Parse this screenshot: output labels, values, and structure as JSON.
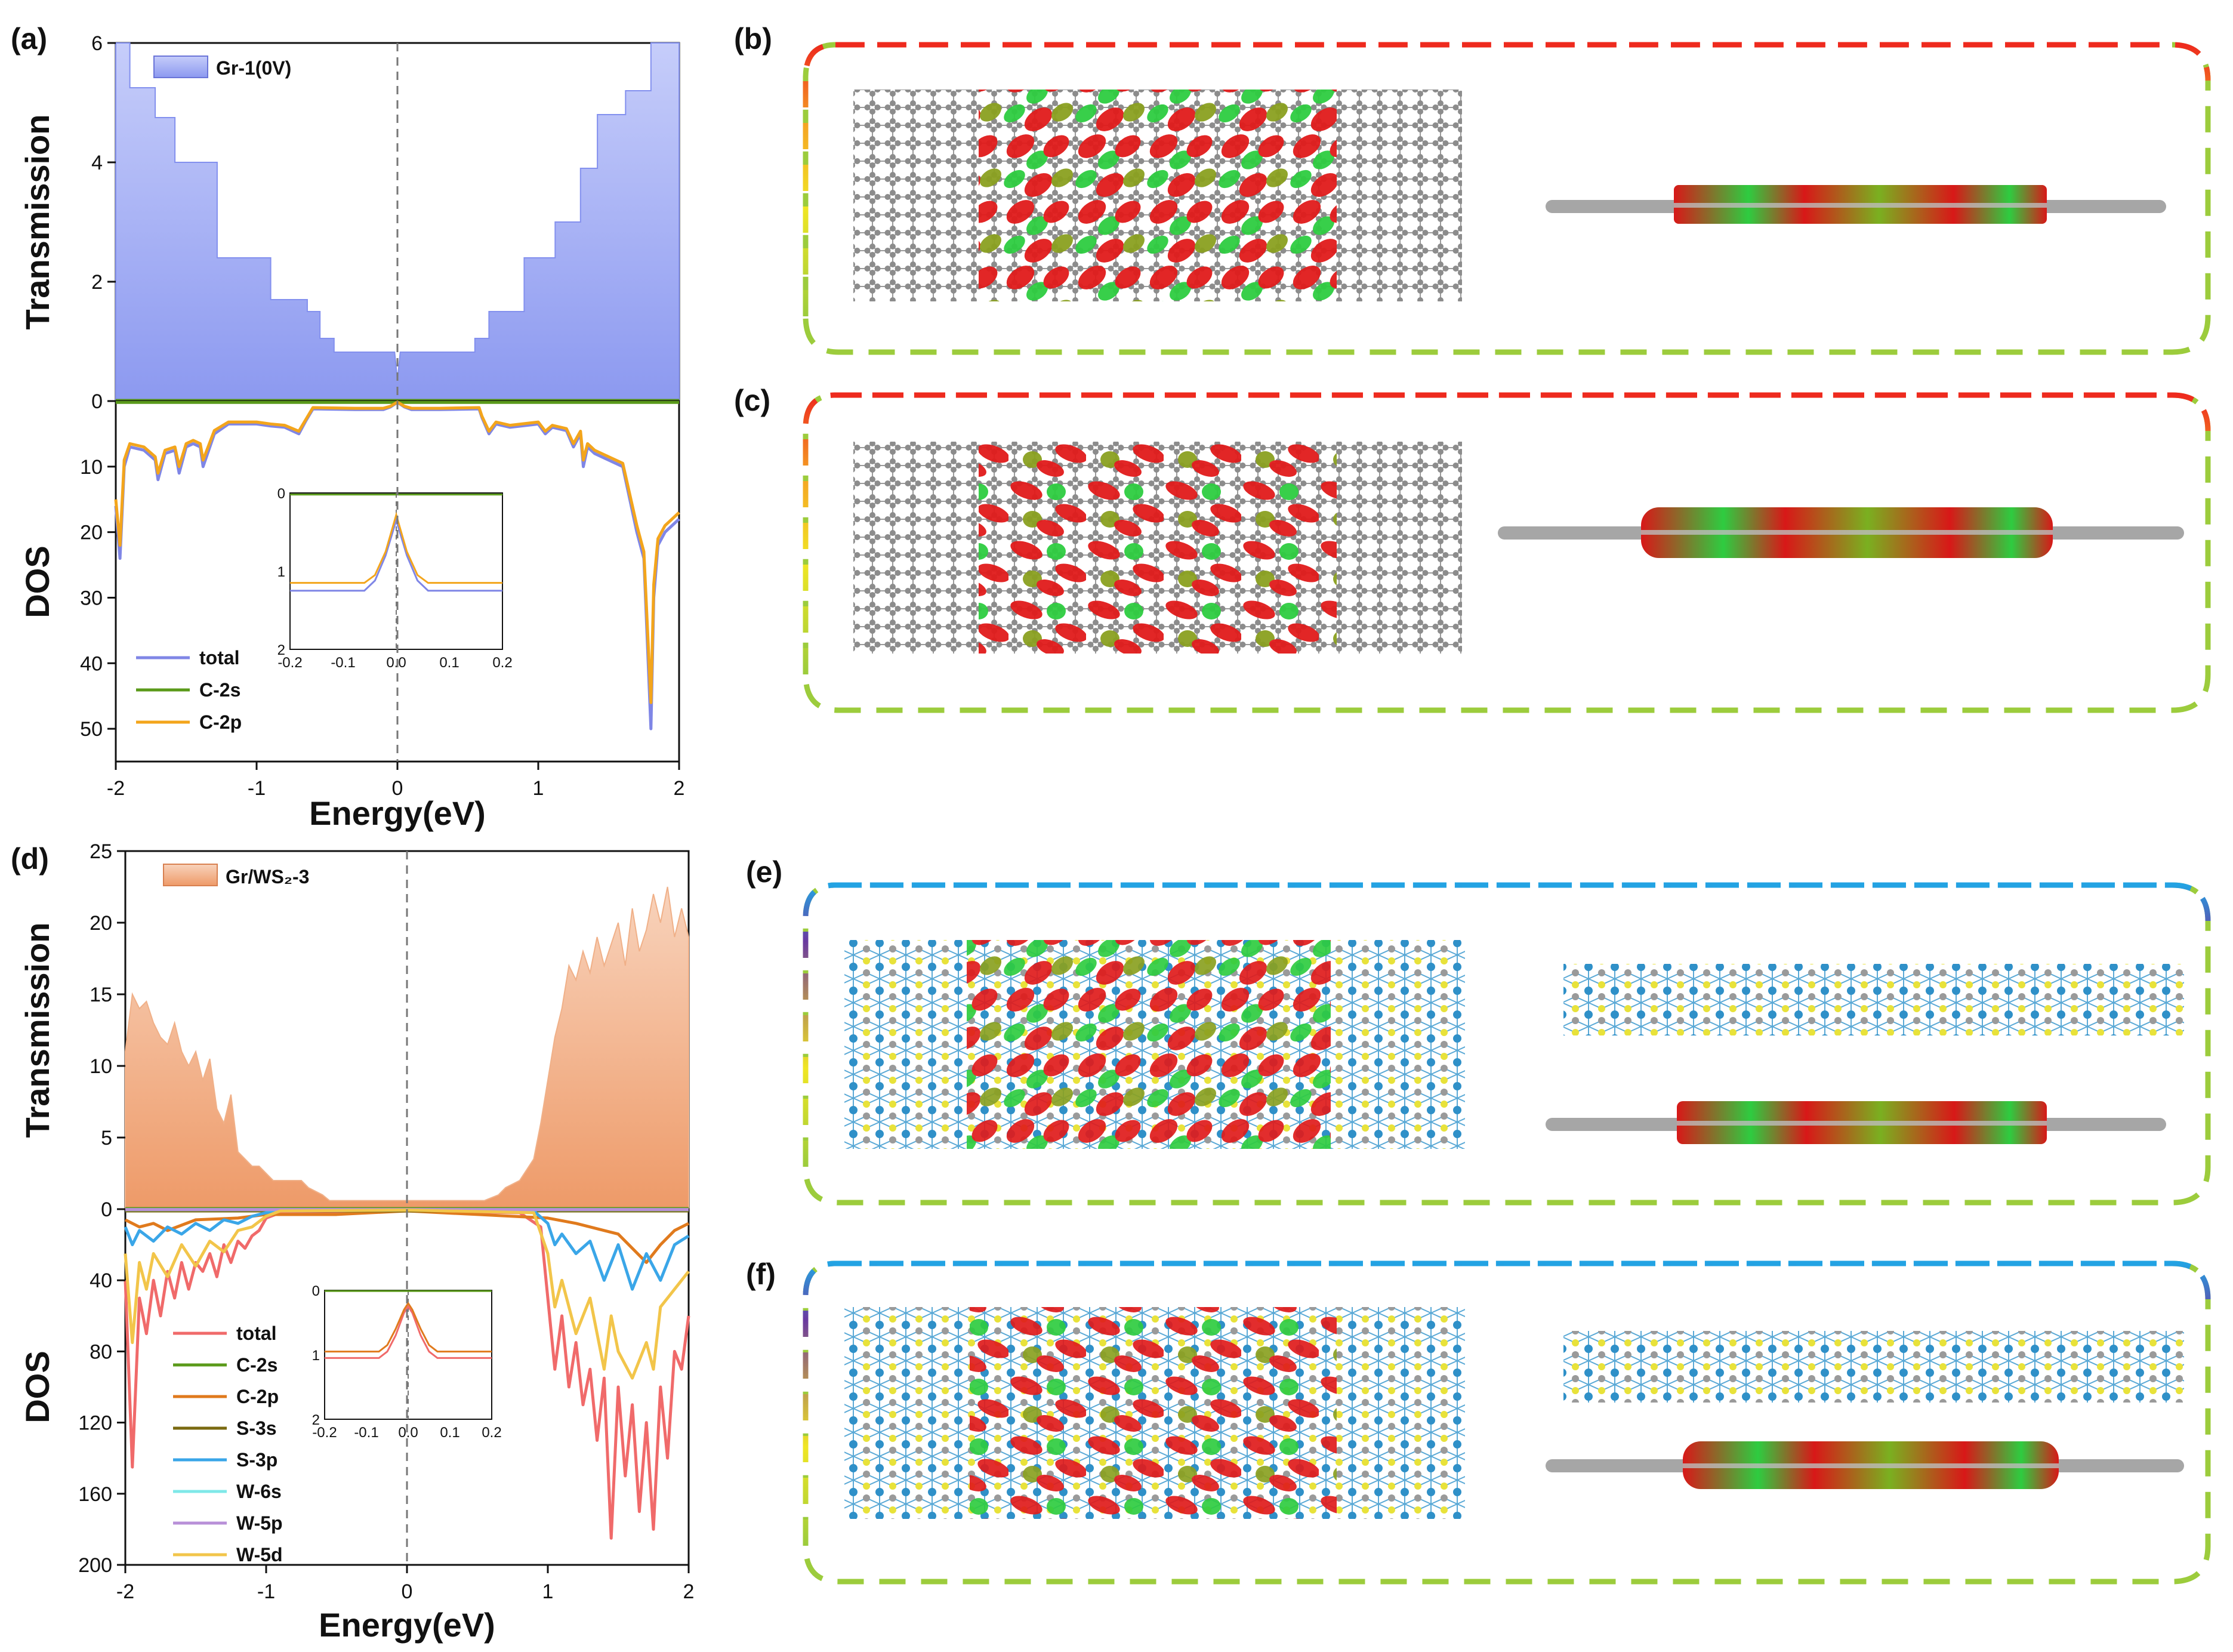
{
  "figure": {
    "panel_labels": [
      "(a)",
      "(b)",
      "(c)",
      "(d)",
      "(e)",
      "(f)"
    ]
  },
  "colors": {
    "gr_fill": "#9aa6f3",
    "ws2_fill": "#f1a67a",
    "total_a": "#7f86e6",
    "c2s": "#5a9a1a",
    "c2p_a": "#f3a51c",
    "total_d": "#f06a6a",
    "c2p_d": "#e07a1d",
    "s3s": "#7a6a10",
    "s3p": "#3aa6e8",
    "w6s": "#7fe8e8",
    "w5p": "#b890d8",
    "w5d": "#f2c54a",
    "frame_top_bc": "#ee2a1e",
    "frame_top_ef": "#23a3e3",
    "frame_bottom": "#9ccc3c",
    "carbon": "#8c8c8c",
    "sulfur": "#e8e23a",
    "tungsten": "#2f90c8",
    "orbital_red": "#e01b1b",
    "orbital_green": "#2ecc40"
  },
  "chart_data": [
    {
      "id": "a-transmission",
      "type": "area",
      "ylabel": "Transmission",
      "ylim": [
        0,
        6
      ],
      "yticks": [
        "0",
        "2",
        "4",
        "6"
      ],
      "xlim": [
        -2,
        2
      ],
      "legend": "Gr-1(0V)",
      "x": [
        -2.0,
        -1.9,
        -1.9,
        -1.72,
        -1.72,
        -1.58,
        -1.58,
        -1.28,
        -1.28,
        -0.9,
        -0.9,
        -0.64,
        -0.64,
        -0.55,
        -0.55,
        -0.45,
        -0.45,
        -0.02,
        0.0,
        0.02,
        0.55,
        0.55,
        0.65,
        0.65,
        0.9,
        0.9,
        1.12,
        1.12,
        1.3,
        1.3,
        1.42,
        1.42,
        1.62,
        1.62,
        1.8,
        1.8,
        2.0
      ],
      "y": [
        6.0,
        6.0,
        5.25,
        5.25,
        4.75,
        4.75,
        4.0,
        4.0,
        2.4,
        2.4,
        1.7,
        1.7,
        1.5,
        1.5,
        1.05,
        1.05,
        0.82,
        0.82,
        0.35,
        0.82,
        0.82,
        1.05,
        1.05,
        1.5,
        1.5,
        2.4,
        2.4,
        3.0,
        3.0,
        3.9,
        3.9,
        4.8,
        4.8,
        5.2,
        5.2,
        6.0,
        6.0
      ]
    },
    {
      "id": "a-dos",
      "type": "line",
      "ylabel": "DOS",
      "xlabel": "Energy(eV)",
      "ylim": [
        0,
        55
      ],
      "yticks": [
        "10",
        "20",
        "30",
        "40",
        "50"
      ],
      "xticks": [
        "-2",
        "-1",
        "0",
        "1",
        "2"
      ],
      "xlim": [
        -2,
        2
      ],
      "series": [
        {
          "name": "total",
          "x": [
            -2.0,
            -1.97,
            -1.94,
            -1.9,
            -1.8,
            -1.72,
            -1.7,
            -1.65,
            -1.58,
            -1.55,
            -1.5,
            -1.45,
            -1.4,
            -1.38,
            -1.3,
            -1.2,
            -1.0,
            -0.9,
            -0.8,
            -0.7,
            -0.65,
            -0.6,
            -0.3,
            -0.1,
            -0.05,
            0.0,
            0.05,
            0.1,
            0.3,
            0.58,
            0.6,
            0.65,
            0.7,
            0.8,
            1.0,
            1.05,
            1.1,
            1.2,
            1.25,
            1.3,
            1.32,
            1.35,
            1.4,
            1.5,
            1.6,
            1.7,
            1.75,
            1.8,
            1.82,
            1.85,
            1.9,
            2.0
          ],
          "y": [
            16,
            24,
            10,
            7,
            7.5,
            9,
            12,
            8,
            7.5,
            11,
            7,
            6.5,
            7,
            10,
            5,
            3.5,
            3.5,
            3.8,
            4,
            5,
            3,
            1.2,
            1.3,
            1.3,
            0.9,
            0.2,
            0.9,
            1.3,
            1.3,
            1.2,
            2.5,
            5,
            3.5,
            4,
            3.5,
            5,
            4,
            4.5,
            7,
            5,
            10,
            7,
            8,
            9,
            10,
            20,
            24,
            50,
            30,
            22,
            20,
            18
          ]
        },
        {
          "name": "C-2s",
          "x": [
            -2.0,
            2.0
          ],
          "y": [
            0.2,
            0.2
          ]
        },
        {
          "name": "C-2p",
          "x": [
            -2.0,
            -1.97,
            -1.94,
            -1.9,
            -1.8,
            -1.72,
            -1.7,
            -1.65,
            -1.58,
            -1.55,
            -1.5,
            -1.45,
            -1.4,
            -1.38,
            -1.3,
            -1.2,
            -1.0,
            -0.9,
            -0.8,
            -0.7,
            -0.65,
            -0.6,
            -0.3,
            -0.1,
            -0.05,
            0.0,
            0.05,
            0.1,
            0.3,
            0.58,
            0.6,
            0.65,
            0.7,
            0.8,
            1.0,
            1.05,
            1.1,
            1.2,
            1.25,
            1.3,
            1.32,
            1.35,
            1.4,
            1.5,
            1.6,
            1.7,
            1.75,
            1.8,
            1.82,
            1.85,
            1.9,
            2.0
          ],
          "y": [
            15,
            22,
            9,
            6.5,
            7,
            8.5,
            11,
            7.5,
            7,
            10,
            6.5,
            6,
            6.5,
            9,
            4.5,
            3.2,
            3.2,
            3.5,
            3.7,
            4.6,
            2.8,
            1.0,
            1.1,
            1.1,
            0.8,
            0.15,
            0.8,
            1.1,
            1.1,
            1.0,
            2.3,
            4.6,
            3.2,
            3.7,
            3.2,
            4.6,
            3.7,
            4.2,
            6.5,
            4.6,
            9,
            6.5,
            7.5,
            8.5,
            9.5,
            19,
            23,
            46,
            28,
            21,
            19,
            17
          ]
        }
      ],
      "legend": [
        "total",
        "C-2s",
        "C-2p"
      ],
      "inset": {
        "xlim": [
          -0.2,
          0.2
        ],
        "ylim": [
          0,
          2
        ],
        "xticks": [
          "-0.2",
          "-0.1",
          "0.0",
          "0.1",
          "0.2"
        ],
        "yticks": [
          "0",
          "1",
          "2"
        ],
        "series": [
          {
            "name": "total",
            "x": [
              -0.2,
              -0.06,
              -0.04,
              -0.02,
              0.0,
              0.02,
              0.04,
              0.06,
              0.2
            ],
            "y": [
              1.25,
              1.25,
              1.12,
              0.8,
              0.35,
              0.8,
              1.12,
              1.25,
              1.25
            ]
          },
          {
            "name": "C-2s",
            "x": [
              -0.2,
              0.2
            ],
            "y": [
              0.02,
              0.02
            ]
          },
          {
            "name": "C-2p",
            "x": [
              -0.2,
              -0.06,
              -0.04,
              -0.02,
              0.0,
              0.02,
              0.04,
              0.06,
              0.2
            ],
            "y": [
              1.15,
              1.15,
              1.05,
              0.75,
              0.28,
              0.75,
              1.05,
              1.15,
              1.15
            ]
          }
        ]
      }
    },
    {
      "id": "d-transmission",
      "type": "area",
      "ylabel": "Transmission",
      "ylim": [
        0,
        25
      ],
      "yticks": [
        "0",
        "5",
        "10",
        "15",
        "20",
        "25"
      ],
      "xlim": [
        -2,
        2
      ],
      "legend": "Gr/WS₂-3",
      "x": [
        -2.0,
        -1.95,
        -1.9,
        -1.85,
        -1.8,
        -1.75,
        -1.7,
        -1.65,
        -1.6,
        -1.55,
        -1.5,
        -1.45,
        -1.4,
        -1.35,
        -1.3,
        -1.25,
        -1.2,
        -1.1,
        -1.05,
        -0.95,
        -0.75,
        -0.7,
        -0.6,
        -0.55,
        0.0,
        0.55,
        0.65,
        0.7,
        0.8,
        0.9,
        0.95,
        1.0,
        1.05,
        1.1,
        1.15,
        1.2,
        1.25,
        1.3,
        1.35,
        1.4,
        1.45,
        1.5,
        1.55,
        1.6,
        1.65,
        1.7,
        1.75,
        1.8,
        1.85,
        1.9,
        1.95,
        2.0
      ],
      "y": [
        11,
        15,
        14,
        14.5,
        13,
        12,
        11.5,
        13,
        11,
        10,
        11,
        9,
        10.5,
        7,
        6,
        8,
        4,
        3,
        3,
        2,
        2,
        1.5,
        1,
        0.6,
        0.6,
        0.6,
        1,
        1.5,
        2,
        3.5,
        6,
        9,
        12,
        14,
        17,
        16,
        18,
        16.5,
        19,
        17,
        18.5,
        20,
        17,
        21,
        18,
        19.5,
        22,
        20,
        22.5,
        19,
        21,
        19
      ]
    },
    {
      "id": "d-dos",
      "type": "line",
      "ylabel": "DOS",
      "xlabel": "Energy(eV)",
      "ylim": [
        0,
        200
      ],
      "yticks": [
        "40",
        "80",
        "120",
        "160",
        "200"
      ],
      "xticks": [
        "-2",
        "-1",
        "0",
        "1",
        "2"
      ],
      "xlim": [
        -2,
        2
      ],
      "series": [
        {
          "name": "total",
          "x": [
            -2.0,
            -1.95,
            -1.9,
            -1.85,
            -1.8,
            -1.75,
            -1.7,
            -1.65,
            -1.6,
            -1.55,
            -1.5,
            -1.45,
            -1.4,
            -1.35,
            -1.3,
            -1.25,
            -1.2,
            -1.15,
            -1.1,
            -1.05,
            -1.0,
            -0.9,
            -0.55,
            0.0,
            0.8,
            0.95,
            1.0,
            1.05,
            1.1,
            1.15,
            1.2,
            1.25,
            1.3,
            1.35,
            1.4,
            1.45,
            1.5,
            1.55,
            1.6,
            1.65,
            1.7,
            1.75,
            1.8,
            1.85,
            1.9,
            1.95,
            2.0
          ],
          "y": [
            40,
            145,
            50,
            70,
            40,
            60,
            35,
            50,
            30,
            45,
            30,
            35,
            25,
            38,
            20,
            30,
            18,
            22,
            15,
            12,
            5,
            2,
            2,
            1,
            2,
            10,
            50,
            90,
            60,
            100,
            75,
            110,
            90,
            130,
            95,
            185,
            100,
            150,
            110,
            170,
            120,
            180,
            100,
            140,
            80,
            90,
            60
          ]
        },
        {
          "name": "C-2s",
          "x": [
            -2.0,
            2.0
          ],
          "y": [
            0.5,
            0.5
          ]
        },
        {
          "name": "C-2p",
          "x": [
            -2.0,
            -1.9,
            -1.8,
            -1.7,
            -1.5,
            -1.2,
            -1.0,
            -0.5,
            0.0,
            0.5,
            1.0,
            1.2,
            1.5,
            1.7,
            1.8,
            1.9,
            2.0
          ],
          "y": [
            6,
            10,
            8,
            12,
            6,
            5,
            3,
            3,
            1,
            3,
            5,
            8,
            14,
            30,
            20,
            12,
            8
          ]
        },
        {
          "name": "S-3s",
          "x": [
            -2.0,
            2.0
          ],
          "y": [
            1,
            1
          ]
        },
        {
          "name": "S-3p",
          "x": [
            -2.0,
            -1.95,
            -1.9,
            -1.8,
            -1.7,
            -1.6,
            -1.5,
            -1.4,
            -1.3,
            -1.2,
            -1.1,
            -1.0,
            -0.9,
            0.0,
            0.9,
            1.0,
            1.05,
            1.1,
            1.2,
            1.3,
            1.4,
            1.5,
            1.6,
            1.7,
            1.8,
            1.9,
            2.0
          ],
          "y": [
            10,
            20,
            12,
            18,
            10,
            14,
            8,
            12,
            6,
            8,
            4,
            2,
            1,
            0.5,
            1,
            8,
            20,
            14,
            25,
            18,
            40,
            20,
            45,
            25,
            40,
            20,
            15
          ]
        },
        {
          "name": "W-6s",
          "x": [
            -2.0,
            2.0
          ],
          "y": [
            0.3,
            0.3
          ]
        },
        {
          "name": "W-5p",
          "x": [
            -2.0,
            2.0
          ],
          "y": [
            0.2,
            0.2
          ]
        },
        {
          "name": "W-5d",
          "x": [
            -2.0,
            -1.95,
            -1.9,
            -1.85,
            -1.8,
            -1.7,
            -1.6,
            -1.5,
            -1.4,
            -1.3,
            -1.2,
            -1.1,
            -1.0,
            -0.9,
            0.0,
            0.9,
            1.0,
            1.05,
            1.1,
            1.2,
            1.3,
            1.4,
            1.45,
            1.5,
            1.6,
            1.7,
            1.75,
            1.8,
            1.9,
            2.0
          ],
          "y": [
            25,
            75,
            30,
            45,
            25,
            38,
            20,
            32,
            18,
            24,
            12,
            10,
            4,
            1,
            0.5,
            2,
            25,
            55,
            40,
            70,
            50,
            90,
            60,
            80,
            95,
            75,
            90,
            55,
            45,
            35
          ]
        }
      ],
      "legend": [
        "total",
        "C-2s",
        "C-2p",
        "S-3s",
        "S-3p",
        "W-6s",
        "W-5p",
        "W-5d"
      ],
      "inset": {
        "xlim": [
          -0.2,
          0.2
        ],
        "ylim": [
          0,
          2
        ],
        "xticks": [
          "-0.2",
          "-0.1",
          "0.0",
          "0.1",
          "0.2"
        ],
        "yticks": [
          "0",
          "1",
          "2"
        ],
        "series": [
          {
            "name": "total",
            "x": [
              -0.2,
              -0.07,
              -0.05,
              -0.03,
              -0.01,
              0.0,
              0.01,
              0.03,
              0.05,
              0.07,
              0.2
            ],
            "y": [
              1.05,
              1.05,
              0.95,
              0.7,
              0.35,
              0.25,
              0.35,
              0.7,
              0.95,
              1.05,
              1.05
            ]
          },
          {
            "name": "C-2p",
            "x": [
              -0.2,
              -0.07,
              -0.05,
              -0.03,
              -0.01,
              0.0,
              0.01,
              0.03,
              0.05,
              0.07,
              0.2
            ],
            "y": [
              0.95,
              0.95,
              0.85,
              0.6,
              0.3,
              0.2,
              0.3,
              0.6,
              0.85,
              0.95,
              0.95
            ]
          },
          {
            "name": "C-2s",
            "x": [
              -0.2,
              0.2
            ],
            "y": [
              0.01,
              0.01
            ]
          }
        ]
      }
    }
  ]
}
